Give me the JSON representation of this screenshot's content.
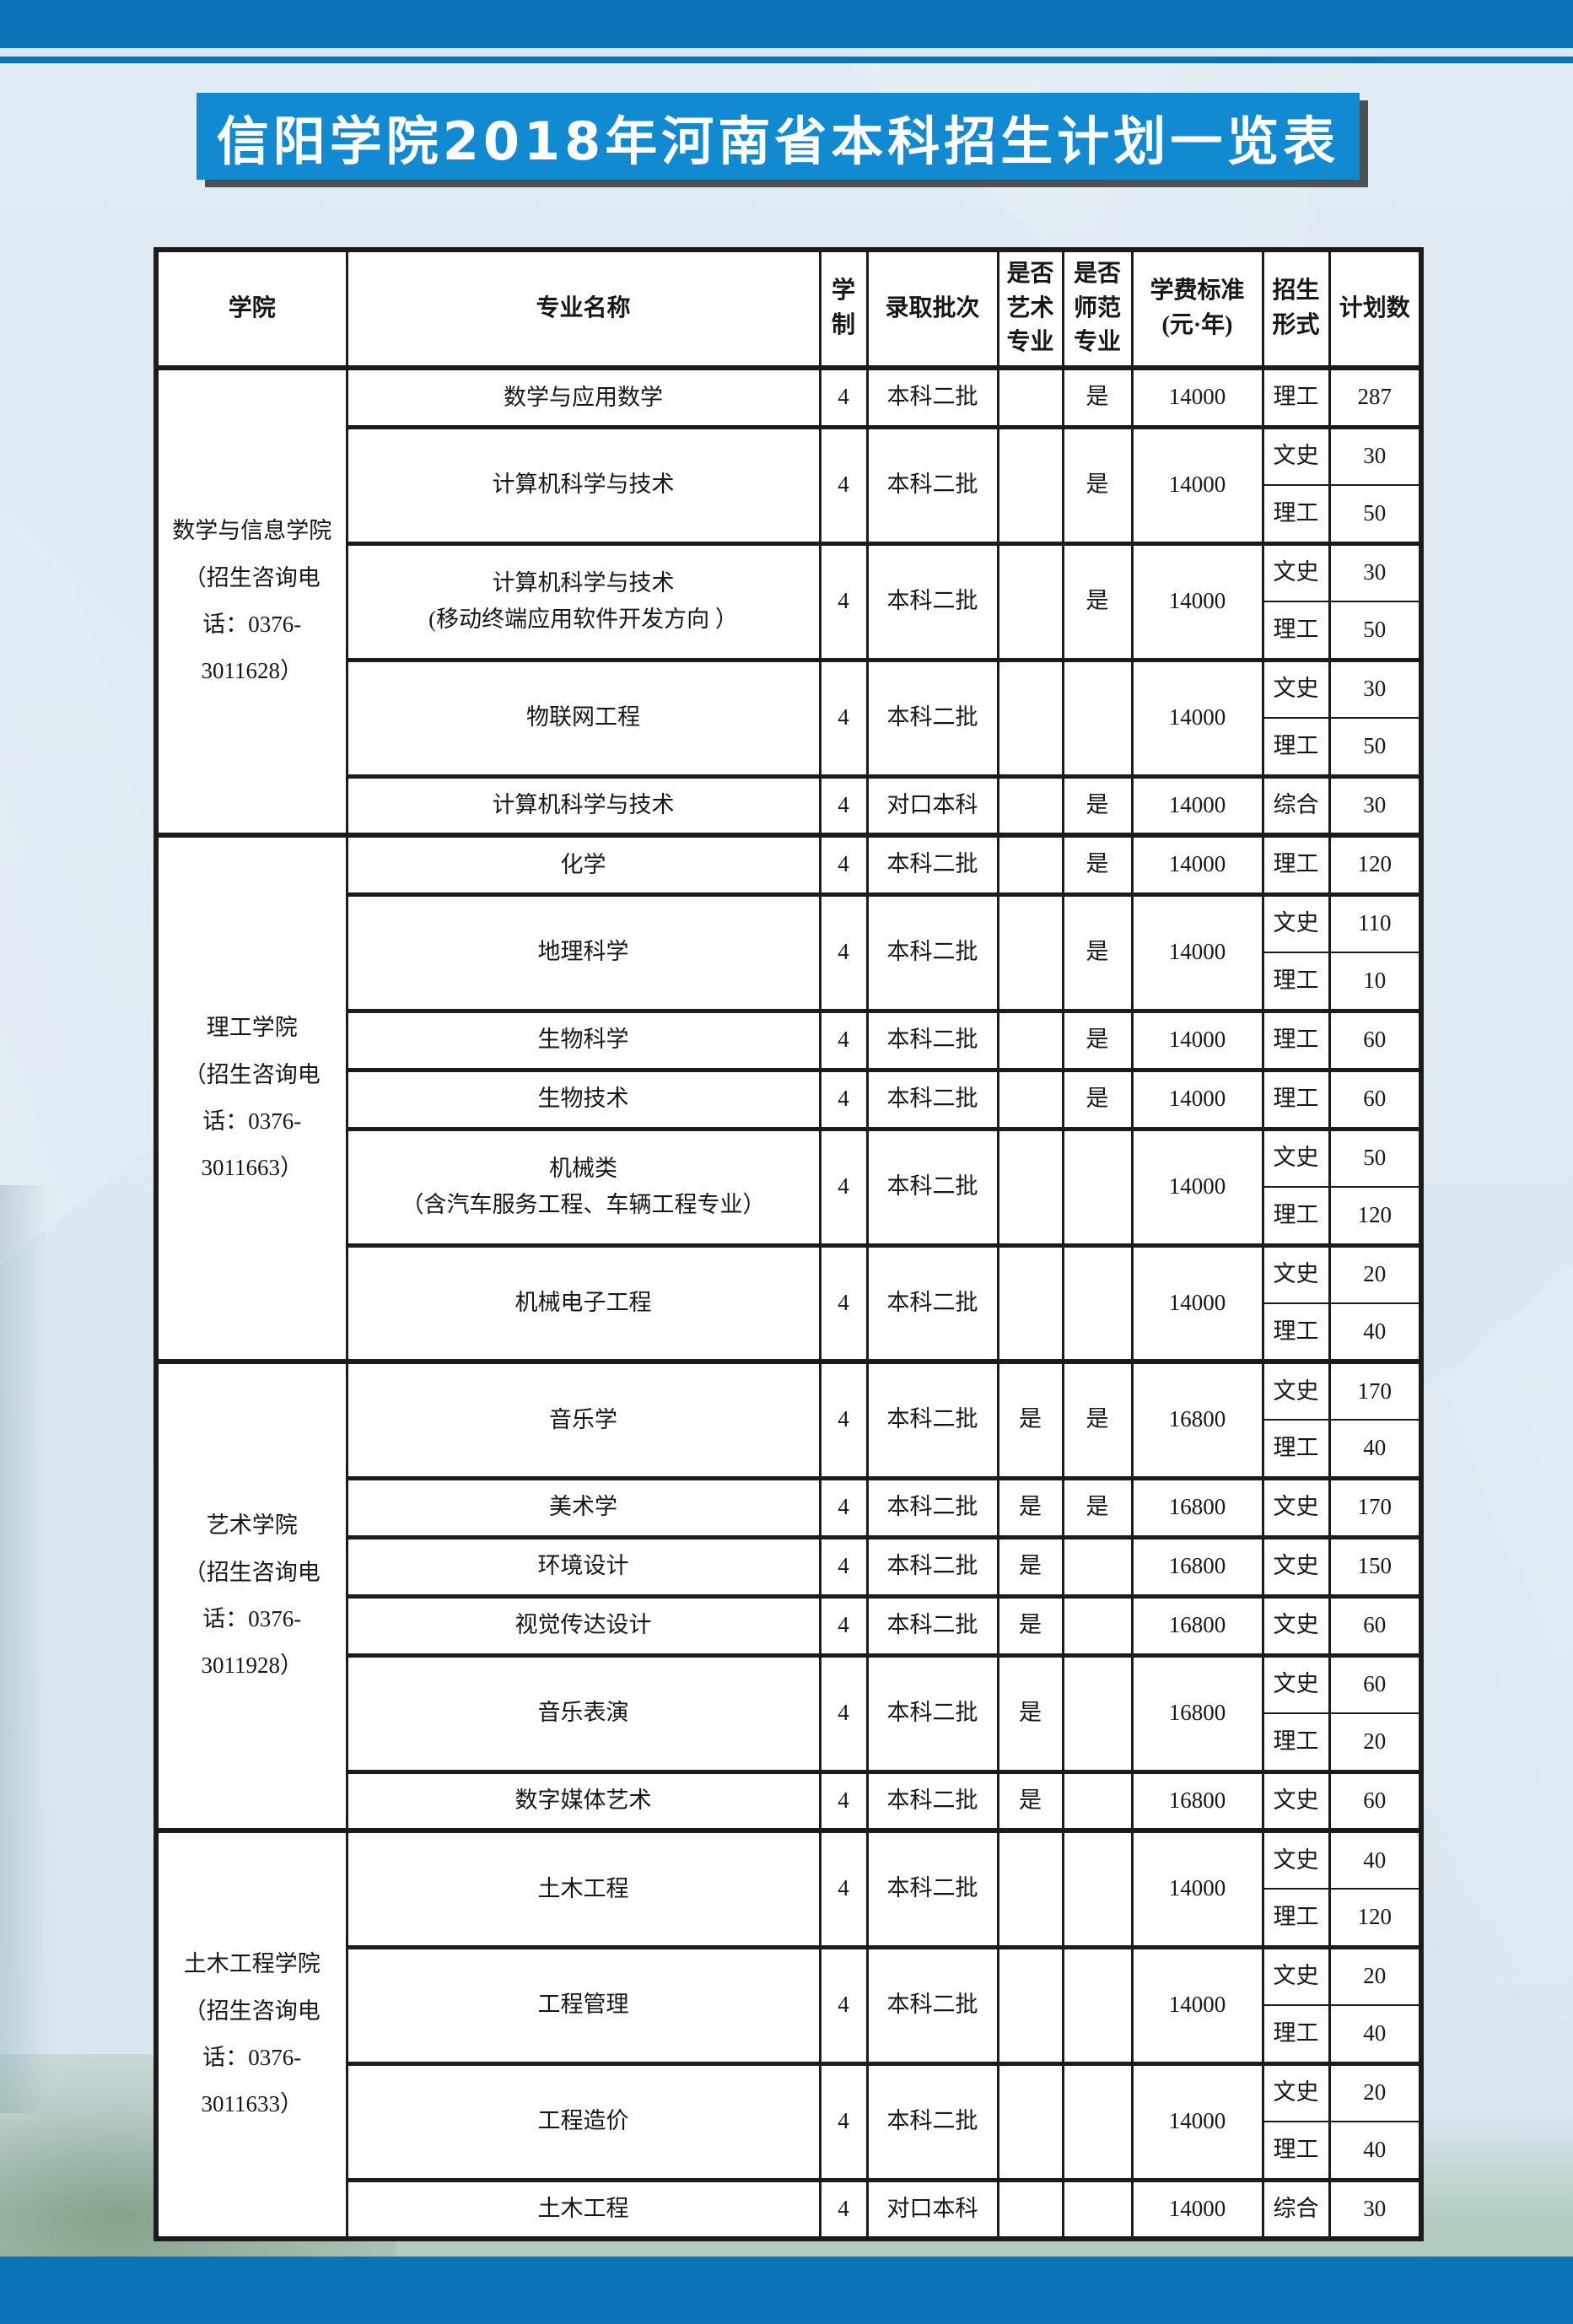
{
  "banner": {
    "title": "信阳学院2018年河南省本科招生计划一览表"
  },
  "colors": {
    "top_bar": "#0a74b6",
    "bottom_bar": "#0a74b6",
    "banner_bg": "#118ad2",
    "page_bg": "#dde9f2",
    "table_border": "#1c1c1c"
  },
  "table": {
    "headers": {
      "college": "学院",
      "major": "专业名称",
      "duration": "学\n制",
      "batch": "录取批次",
      "art": "是否\n艺术\n专业",
      "normal": "是否\n师范\n专业",
      "tuition": "学费标准\n(元·年)",
      "form": "招生\n形式",
      "count": "计划数"
    },
    "sections": [
      {
        "college": "数学与信息学院\n（招生咨询电\n话：0376-\n3011628）",
        "rows": [
          {
            "major": "数学与应用数学",
            "duration": "4",
            "batch": "本科二批",
            "art": "",
            "normal": "是",
            "tuition": "14000",
            "forms": [
              {
                "form": "理工",
                "count": "287"
              }
            ]
          },
          {
            "major": "计算机科学与技术",
            "duration": "4",
            "batch": "本科二批",
            "art": "",
            "normal": "是",
            "tuition": "14000",
            "forms": [
              {
                "form": "文史",
                "count": "30"
              },
              {
                "form": "理工",
                "count": "50"
              }
            ]
          },
          {
            "major": "计算机科学与技术\n(移动终端应用软件开发方向 ）",
            "duration": "4",
            "batch": "本科二批",
            "art": "",
            "normal": "是",
            "tuition": "14000",
            "forms": [
              {
                "form": "文史",
                "count": "30"
              },
              {
                "form": "理工",
                "count": "50"
              }
            ]
          },
          {
            "major": "物联网工程",
            "duration": "4",
            "batch": "本科二批",
            "art": "",
            "normal": "",
            "tuition": "14000",
            "forms": [
              {
                "form": "文史",
                "count": "30"
              },
              {
                "form": "理工",
                "count": "50"
              }
            ]
          },
          {
            "major": "计算机科学与技术",
            "duration": "4",
            "batch": "对口本科",
            "art": "",
            "normal": "是",
            "tuition": "14000",
            "forms": [
              {
                "form": "综合",
                "count": "30"
              }
            ]
          }
        ]
      },
      {
        "college": "理工学院\n（招生咨询电\n话：0376-\n3011663）",
        "rows": [
          {
            "major": "化学",
            "duration": "4",
            "batch": "本科二批",
            "art": "",
            "normal": "是",
            "tuition": "14000",
            "forms": [
              {
                "form": "理工",
                "count": "120"
              }
            ]
          },
          {
            "major": "地理科学",
            "duration": "4",
            "batch": "本科二批",
            "art": "",
            "normal": "是",
            "tuition": "14000",
            "forms": [
              {
                "form": "文史",
                "count": "110"
              },
              {
                "form": "理工",
                "count": "10"
              }
            ]
          },
          {
            "major": "生物科学",
            "duration": "4",
            "batch": "本科二批",
            "art": "",
            "normal": "是",
            "tuition": "14000",
            "forms": [
              {
                "form": "理工",
                "count": "60"
              }
            ]
          },
          {
            "major": "生物技术",
            "duration": "4",
            "batch": "本科二批",
            "art": "",
            "normal": "是",
            "tuition": "14000",
            "forms": [
              {
                "form": "理工",
                "count": "60"
              }
            ]
          },
          {
            "major": "机械类\n（含汽车服务工程、车辆工程专业）",
            "duration": "4",
            "batch": "本科二批",
            "art": "",
            "normal": "",
            "tuition": "14000",
            "forms": [
              {
                "form": "文史",
                "count": "50"
              },
              {
                "form": "理工",
                "count": "120"
              }
            ]
          },
          {
            "major": "机械电子工程",
            "duration": "4",
            "batch": "本科二批",
            "art": "",
            "normal": "",
            "tuition": "14000",
            "forms": [
              {
                "form": "文史",
                "count": "20"
              },
              {
                "form": "理工",
                "count": "40"
              }
            ]
          }
        ]
      },
      {
        "college": "艺术学院\n（招生咨询电\n话：0376-\n3011928）",
        "rows": [
          {
            "major": "音乐学",
            "duration": "4",
            "batch": "本科二批",
            "art": "是",
            "normal": "是",
            "tuition": "16800",
            "forms": [
              {
                "form": "文史",
                "count": "170"
              },
              {
                "form": "理工",
                "count": "40"
              }
            ]
          },
          {
            "major": "美术学",
            "duration": "4",
            "batch": "本科二批",
            "art": "是",
            "normal": "是",
            "tuition": "16800",
            "forms": [
              {
                "form": "文史",
                "count": "170"
              }
            ]
          },
          {
            "major": "环境设计",
            "duration": "4",
            "batch": "本科二批",
            "art": "是",
            "normal": "",
            "tuition": "16800",
            "forms": [
              {
                "form": "文史",
                "count": "150"
              }
            ]
          },
          {
            "major": "视觉传达设计",
            "duration": "4",
            "batch": "本科二批",
            "art": "是",
            "normal": "",
            "tuition": "16800",
            "forms": [
              {
                "form": "文史",
                "count": "60"
              }
            ]
          },
          {
            "major": "音乐表演",
            "duration": "4",
            "batch": "本科二批",
            "art": "是",
            "normal": "",
            "tuition": "16800",
            "forms": [
              {
                "form": "文史",
                "count": "60"
              },
              {
                "form": "理工",
                "count": "20"
              }
            ]
          },
          {
            "major": "数字媒体艺术",
            "duration": "4",
            "batch": "本科二批",
            "art": "是",
            "normal": "",
            "tuition": "16800",
            "forms": [
              {
                "form": "文史",
                "count": "60"
              }
            ]
          }
        ]
      },
      {
        "college": "土木工程学院\n（招生咨询电\n话：0376-\n3011633）",
        "rows": [
          {
            "major": "土木工程",
            "duration": "4",
            "batch": "本科二批",
            "art": "",
            "normal": "",
            "tuition": "14000",
            "forms": [
              {
                "form": "文史",
                "count": "40"
              },
              {
                "form": "理工",
                "count": "120"
              }
            ]
          },
          {
            "major": "工程管理",
            "duration": "4",
            "batch": "本科二批",
            "art": "",
            "normal": "",
            "tuition": "14000",
            "forms": [
              {
                "form": "文史",
                "count": "20"
              },
              {
                "form": "理工",
                "count": "40"
              }
            ]
          },
          {
            "major": "工程造价",
            "duration": "4",
            "batch": "本科二批",
            "art": "",
            "normal": "",
            "tuition": "14000",
            "forms": [
              {
                "form": "文史",
                "count": "20"
              },
              {
                "form": "理工",
                "count": "40"
              }
            ]
          },
          {
            "major": "土木工程",
            "duration": "4",
            "batch": "对口本科",
            "art": "",
            "normal": "",
            "tuition": "14000",
            "forms": [
              {
                "form": "综合",
                "count": "30"
              }
            ]
          }
        ]
      }
    ]
  }
}
